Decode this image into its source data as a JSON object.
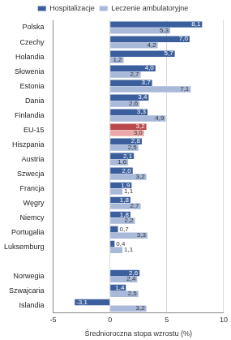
{
  "chart_data": {
    "type": "bar",
    "orientation": "horizontal",
    "xlabel": "Średnioroczna stopa wzrostu (%)",
    "categories": [
      "Polska",
      "Czechy",
      "Holandia",
      "Słowenia",
      "Estonia",
      "Dania",
      "Finlandia",
      "EU-15",
      "Hiszpania",
      "Austria",
      "Szwecja",
      "Francja",
      "Węgry",
      "Niemcy",
      "Portugalia",
      "Luksemburg",
      null,
      "Norwegia",
      "Szwajcaria",
      "Islandia"
    ],
    "series": [
      {
        "name": "Hospitalizacje",
        "colors": [
          "#3b5e9c",
          "#3b5e9c",
          "#3b5e9c",
          "#3b5e9c",
          "#3b5e9c",
          "#3b5e9c",
          "#3b5e9c",
          "#b8484a",
          "#3b5e9c",
          "#3b5e9c",
          "#3b5e9c",
          "#3b5e9c",
          "#3b5e9c",
          "#3b5e9c",
          "#3b5e9c",
          "#3b5e9c",
          "#3b5e9c",
          "#3b5e9c",
          "#3b5e9c",
          "#3b5e9c"
        ],
        "values": [
          8.1,
          7.0,
          5.7,
          4.0,
          3.7,
          3.4,
          3.3,
          3.2,
          2.8,
          2.1,
          2.0,
          1.9,
          1.8,
          1.8,
          0.7,
          0.4,
          null,
          2.6,
          1.4,
          -3.1
        ],
        "value_labels": [
          "8,1",
          "7,0",
          "5,7",
          "4,0",
          "3,7",
          "3,4",
          "3,3",
          "3,2",
          "2,8",
          "2,1",
          "2,0",
          "1,9",
          "1,8",
          "1,8",
          "0,7",
          "0,4",
          null,
          "2,6",
          "1,4",
          "-3,1"
        ]
      },
      {
        "name": "Leczenie ambulatoryjne",
        "colors": [
          "#a9b9da",
          "#a9b9da",
          "#a9b9da",
          "#a9b9da",
          "#a9b9da",
          "#a9b9da",
          "#a9b9da",
          "#eaa8a8",
          "#a9b9da",
          "#a9b9da",
          "#a9b9da",
          "#a9b9da",
          "#a9b9da",
          "#a9b9da",
          "#a9b9da",
          "#a9b9da",
          "#a9b9da",
          "#a9b9da",
          "#a9b9da",
          "#a9b9da"
        ],
        "values": [
          5.3,
          4.2,
          1.2,
          2.7,
          7.1,
          2.6,
          4.9,
          3.0,
          2.5,
          1.6,
          3.2,
          1.1,
          2.7,
          2.2,
          3.3,
          1.1,
          null,
          2.4,
          2.5,
          3.2
        ],
        "value_labels": [
          "5,3",
          "4,2",
          "1,2",
          "2,7",
          "7,1",
          "2,6",
          "4,9",
          "3,0",
          "2,5",
          "1,6",
          "3,2",
          "1,1",
          "2,7",
          "2,2",
          "3,3",
          "1,1",
          null,
          "2,4",
          "2,5",
          "3,2"
        ]
      }
    ],
    "xlim": [
      -5,
      10
    ],
    "xticks": [
      -5,
      0,
      5,
      10
    ],
    "grid": true,
    "legend": "top",
    "data_labels": true
  }
}
